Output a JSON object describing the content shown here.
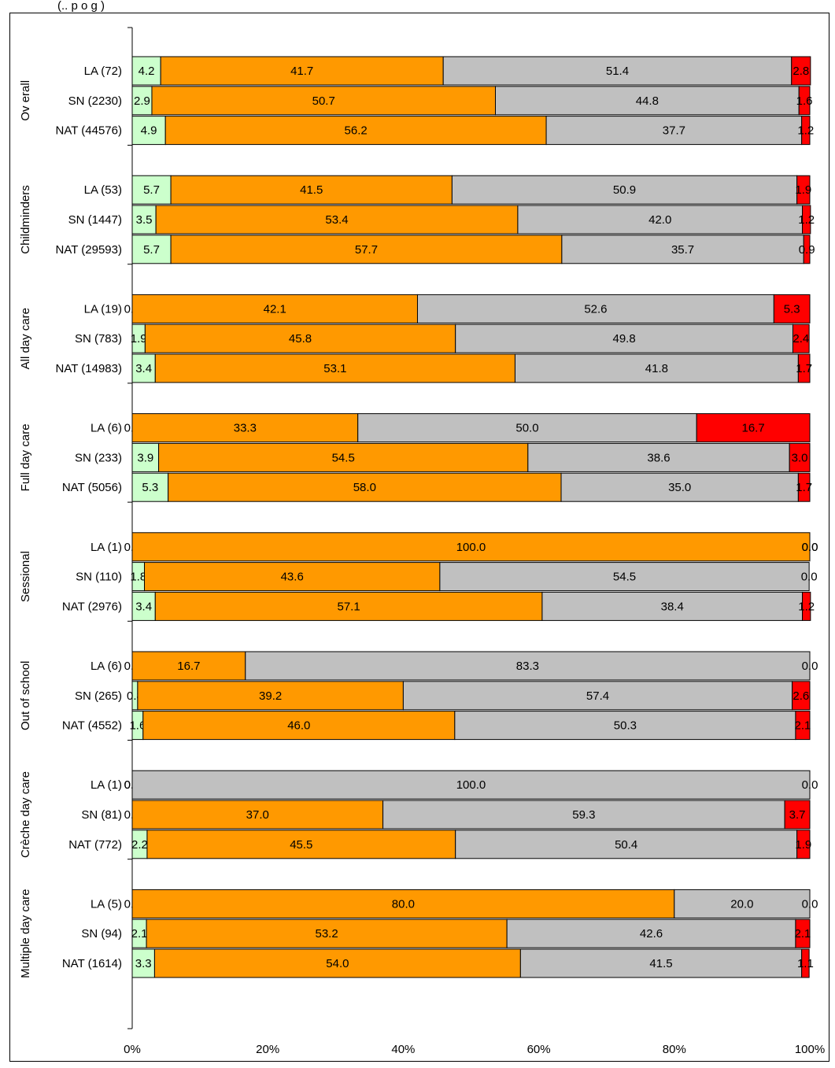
{
  "caption": "(.. p  o  g  )",
  "chart_data": {
    "type": "bar",
    "orientation": "horizontal",
    "stacked": true,
    "percent": true,
    "xlim": [
      0,
      100
    ],
    "ticks": [
      "0%",
      "20%",
      "40%",
      "60%",
      "80%",
      "100%"
    ],
    "grid": false,
    "legend": "none",
    "segment_colors": [
      "#ccffcc",
      "#ff9900",
      "#c0c0c0",
      "#ff0000"
    ],
    "groups": [
      {
        "name": "Ov erall",
        "rows": [
          {
            "label": "LA (72)",
            "values": [
              4.2,
              41.7,
              51.4,
              2.8
            ],
            "texts": [
              "4.2",
              "41.7",
              "51.4",
              "2.8"
            ]
          },
          {
            "label": "SN (2230)",
            "values": [
              2.9,
              50.7,
              44.8,
              1.6
            ],
            "texts": [
              "2.9",
              "50.7",
              "44.8",
              "1.6"
            ]
          },
          {
            "label": "NAT (44576)",
            "values": [
              4.9,
              56.2,
              37.7,
              1.2
            ],
            "texts": [
              "4.9",
              "56.2",
              "37.7",
              "1.2"
            ]
          }
        ]
      },
      {
        "name": "Childminders",
        "rows": [
          {
            "label": "LA (53)",
            "values": [
              5.7,
              41.5,
              50.9,
              1.9
            ],
            "texts": [
              "5.7",
              "41.5",
              "50.9",
              "1.9"
            ]
          },
          {
            "label": "SN (1447)",
            "values": [
              3.5,
              53.4,
              42.0,
              1.2
            ],
            "texts": [
              "3.5",
              "53.4",
              "42.0",
              "1.2"
            ]
          },
          {
            "label": "NAT (29593)",
            "values": [
              5.7,
              57.7,
              35.7,
              0.9
            ],
            "texts": [
              "5.7",
              "57.7",
              "35.7",
              "0.9"
            ]
          }
        ]
      },
      {
        "name": "All day care",
        "rows": [
          {
            "label": "LA (19)",
            "values": [
              0.0,
              42.1,
              52.6,
              5.3
            ],
            "texts": [
              "0.0",
              "42.1",
              "52.6",
              "5.3"
            ]
          },
          {
            "label": "SN (783)",
            "values": [
              1.9,
              45.8,
              49.8,
              2.4
            ],
            "texts": [
              "1.9",
              "45.8",
              "49.8",
              "2.4"
            ]
          },
          {
            "label": "NAT (14983)",
            "values": [
              3.4,
              53.1,
              41.8,
              1.7
            ],
            "texts": [
              "3.4",
              "53.1",
              "41.8",
              "1.7"
            ]
          }
        ]
      },
      {
        "name": "Full day care",
        "rows": [
          {
            "label": "LA (6)",
            "values": [
              0.0,
              33.3,
              50.0,
              16.7
            ],
            "texts": [
              "0.0",
              "33.3",
              "50.0",
              "16.7"
            ]
          },
          {
            "label": "SN (233)",
            "values": [
              3.9,
              54.5,
              38.6,
              3.0
            ],
            "texts": [
              "3.9",
              "54.5",
              "38.6",
              "3.0"
            ]
          },
          {
            "label": "NAT (5056)",
            "values": [
              5.3,
              58.0,
              35.0,
              1.7
            ],
            "texts": [
              "5.3",
              "58.0",
              "35.0",
              "1.7"
            ]
          }
        ]
      },
      {
        "name": "Sessional",
        "rows": [
          {
            "label": "LA (1)",
            "values": [
              0.0,
              100.0,
              0.0,
              0.0
            ],
            "texts": [
              "0.0",
              "100.0",
              "0.0",
              "0.0"
            ]
          },
          {
            "label": "SN (110)",
            "values": [
              1.8,
              43.6,
              54.5,
              0.0
            ],
            "texts": [
              "1.8",
              "43.6",
              "54.5",
              "0.0"
            ]
          },
          {
            "label": "NAT (2976)",
            "values": [
              3.4,
              57.1,
              38.4,
              1.2
            ],
            "texts": [
              "3.4",
              "57.1",
              "38.4",
              "1.2"
            ]
          }
        ]
      },
      {
        "name": "Out of school",
        "rows": [
          {
            "label": "LA (6)",
            "values": [
              0.0,
              16.7,
              83.3,
              0.0
            ],
            "texts": [
              "0.0",
              "16.7",
              "83.3",
              "0.0"
            ]
          },
          {
            "label": "SN (265)",
            "values": [
              0.8,
              39.2,
              57.4,
              2.6
            ],
            "texts": [
              "0.8",
              "39.2",
              "57.4",
              "2.6"
            ]
          },
          {
            "label": "NAT (4552)",
            "values": [
              1.6,
              46.0,
              50.3,
              2.1
            ],
            "texts": [
              "1.6",
              "46.0",
              "50.3",
              "2.1"
            ]
          }
        ]
      },
      {
        "name": "Crèche day care",
        "rows": [
          {
            "label": "LA (1)",
            "values": [
              0.0,
              0.0,
              100.0,
              0.0
            ],
            "texts": [
              "0.0",
              "0.0",
              "100.0",
              "0.0"
            ]
          },
          {
            "label": "SN (81)",
            "values": [
              0.0,
              37.0,
              59.3,
              3.7
            ],
            "texts": [
              "0.0",
              "37.0",
              "59.3",
              "3.7"
            ]
          },
          {
            "label": "NAT (772)",
            "values": [
              2.2,
              45.5,
              50.4,
              1.9
            ],
            "texts": [
              "2.2",
              "45.5",
              "50.4",
              "1.9"
            ]
          }
        ]
      },
      {
        "name": "Multiple day care",
        "rows": [
          {
            "label": "LA (5)",
            "values": [
              0.0,
              80.0,
              20.0,
              0.0
            ],
            "texts": [
              "0.0",
              "80.0",
              "20.0",
              "0.0"
            ]
          },
          {
            "label": "SN (94)",
            "values": [
              2.1,
              53.2,
              42.6,
              2.1
            ],
            "texts": [
              "2.1",
              "53.2",
              "42.6",
              "2.1"
            ]
          },
          {
            "label": "NAT (1614)",
            "values": [
              3.3,
              54.0,
              41.5,
              1.1
            ],
            "texts": [
              "3.3",
              "54.0",
              "41.5",
              "1.1"
            ]
          }
        ]
      }
    ]
  }
}
